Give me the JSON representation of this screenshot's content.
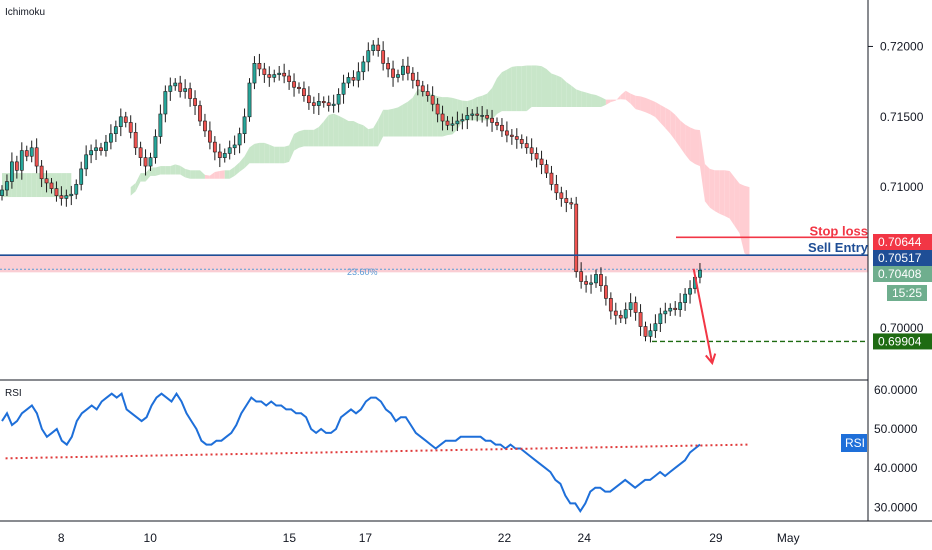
{
  "chart_data": {
    "type": "candlestick",
    "main_pane": {
      "label": "Ichimoku",
      "ylim": [
        0.6963,
        0.7233
      ],
      "price_ticks": [
        "0.72000",
        "0.71500",
        "0.71000",
        "0.70000"
      ],
      "price_tick_values": [
        0.72,
        0.715,
        0.71,
        0.7
      ],
      "levels": [
        {
          "name": "stop-loss",
          "label": "Stop loss",
          "value": 0.70644,
          "value_text": "0.70644",
          "color": "#f23645",
          "style": "solid"
        },
        {
          "name": "sell-entry",
          "label": "Sell Entry",
          "value": 0.70517,
          "value_text": "0.70517",
          "color": "#1f4e96",
          "style": "solid"
        },
        {
          "name": "current-price",
          "label": "",
          "value": 0.70408,
          "value_text": "0.70408",
          "color": "#6fae8e",
          "style": "none"
        },
        {
          "name": "take-profit",
          "label": "",
          "value": 0.69904,
          "value_text": "0.69904",
          "color": "#1e6b12",
          "style": "dashed"
        }
      ],
      "countdown": "15:25",
      "fib_label": "23.60%",
      "fib_value": 0.70417,
      "resistance_zone": [
        0.70395,
        0.70517
      ],
      "forecast_arrow": {
        "from": [
          37.1,
          0.7042
        ],
        "to": [
          38.1,
          0.6975
        ]
      },
      "candles_close": [
        0.7098,
        0.7104,
        0.7118,
        0.7112,
        0.7126,
        0.7122,
        0.7128,
        0.7115,
        0.7106,
        0.7103,
        0.7099,
        0.7094,
        0.7092,
        0.7094,
        0.7095,
        0.7102,
        0.7113,
        0.7123,
        0.7126,
        0.7128,
        0.7126,
        0.7132,
        0.7138,
        0.7143,
        0.715,
        0.7146,
        0.7139,
        0.7128,
        0.7121,
        0.7115,
        0.7121,
        0.7136,
        0.7152,
        0.7168,
        0.7172,
        0.7174,
        0.7168,
        0.717,
        0.7163,
        0.7158,
        0.7147,
        0.714,
        0.7132,
        0.7125,
        0.7121,
        0.7124,
        0.7128,
        0.713,
        0.7138,
        0.715,
        0.7174,
        0.7188,
        0.7184,
        0.718,
        0.7178,
        0.718,
        0.7181,
        0.7179,
        0.7175,
        0.7171,
        0.717,
        0.7165,
        0.716,
        0.7158,
        0.7161,
        0.716,
        0.7158,
        0.7159,
        0.7166,
        0.7174,
        0.7178,
        0.7176,
        0.7182,
        0.7189,
        0.7197,
        0.7201,
        0.7197,
        0.7188,
        0.7184,
        0.7178,
        0.718,
        0.7186,
        0.7181,
        0.7176,
        0.7172,
        0.7168,
        0.7165,
        0.7159,
        0.7152,
        0.7147,
        0.7144,
        0.7145,
        0.7147,
        0.7148,
        0.7151,
        0.7152,
        0.7151,
        0.7151,
        0.7149,
        0.7146,
        0.7144,
        0.714,
        0.7137,
        0.7136,
        0.7134,
        0.7131,
        0.7128,
        0.7124,
        0.712,
        0.7116,
        0.711,
        0.7102,
        0.7096,
        0.7092,
        0.7089,
        0.7088,
        0.704,
        0.7033,
        0.7031,
        0.7032,
        0.7038,
        0.703,
        0.7021,
        0.7012,
        0.7009,
        0.7007,
        0.7013,
        0.7018,
        0.7011,
        0.7001,
        0.6994,
        0.6998,
        0.7003,
        0.701,
        0.7012,
        0.7014,
        0.7013,
        0.7018,
        0.7024,
        0.7028,
        0.7036,
        0.7041
      ]
    },
    "rsi_pane": {
      "label": "RSI",
      "ylim": [
        26.5,
        62.5
      ],
      "ticks": [
        "60.0000",
        "50.0000",
        "40.0000",
        "30.0000"
      ],
      "tick_values": [
        60,
        50,
        40,
        30
      ],
      "badge": "RSI",
      "trendline": {
        "from": [
          0,
          42.5
        ],
        "to": [
          40,
          46.0
        ]
      },
      "values": [
        52,
        54,
        51,
        52,
        54,
        55,
        56,
        54,
        50,
        48,
        49,
        50,
        47,
        46,
        48,
        52,
        54,
        55,
        56,
        55,
        57,
        58,
        59,
        58,
        59,
        55,
        54,
        53,
        52,
        53,
        56,
        58,
        59,
        58,
        57,
        59,
        57,
        54,
        52,
        50,
        47,
        46,
        46,
        47,
        47,
        48,
        49,
        51,
        54,
        56,
        58,
        57,
        57,
        56,
        57,
        56,
        56,
        55,
        55,
        54,
        54,
        53,
        50,
        49,
        50,
        49,
        49,
        50,
        53,
        54,
        55,
        54,
        55,
        57,
        58,
        58,
        57,
        55,
        54,
        52,
        53,
        53,
        51,
        49,
        48,
        47,
        46,
        45,
        46,
        47,
        47,
        47,
        48,
        48,
        48,
        48,
        48,
        47,
        47,
        46,
        46,
        45,
        46,
        45,
        45,
        44,
        43,
        42,
        41,
        40,
        39,
        37,
        36,
        33,
        31,
        31,
        29,
        31,
        34,
        35,
        35,
        34,
        34,
        35,
        36,
        37,
        36,
        35,
        36,
        37,
        37,
        38,
        39,
        38,
        39,
        40,
        41,
        42,
        44,
        45,
        46
      ]
    },
    "x_axis": {
      "labels": [
        "8",
        "10",
        "15",
        "17",
        "22",
        "24",
        "29",
        "May"
      ],
      "positions": [
        3,
        7.8,
        15.3,
        19.4,
        26.9,
        31.2,
        38.3,
        42.2
      ],
      "xlim": [
        -0.3,
        46.5
      ]
    },
    "colors": {
      "bull": "#26a69a",
      "bear": "#ef5350",
      "wick": "#1c1c1c",
      "cloud_bull": "#c8e6c9",
      "cloud_bear": "#ffcdd2",
      "rsi_line": "#1e6fd9",
      "rsi_trend": "#e03a3a",
      "arrow": "#f23645"
    }
  }
}
